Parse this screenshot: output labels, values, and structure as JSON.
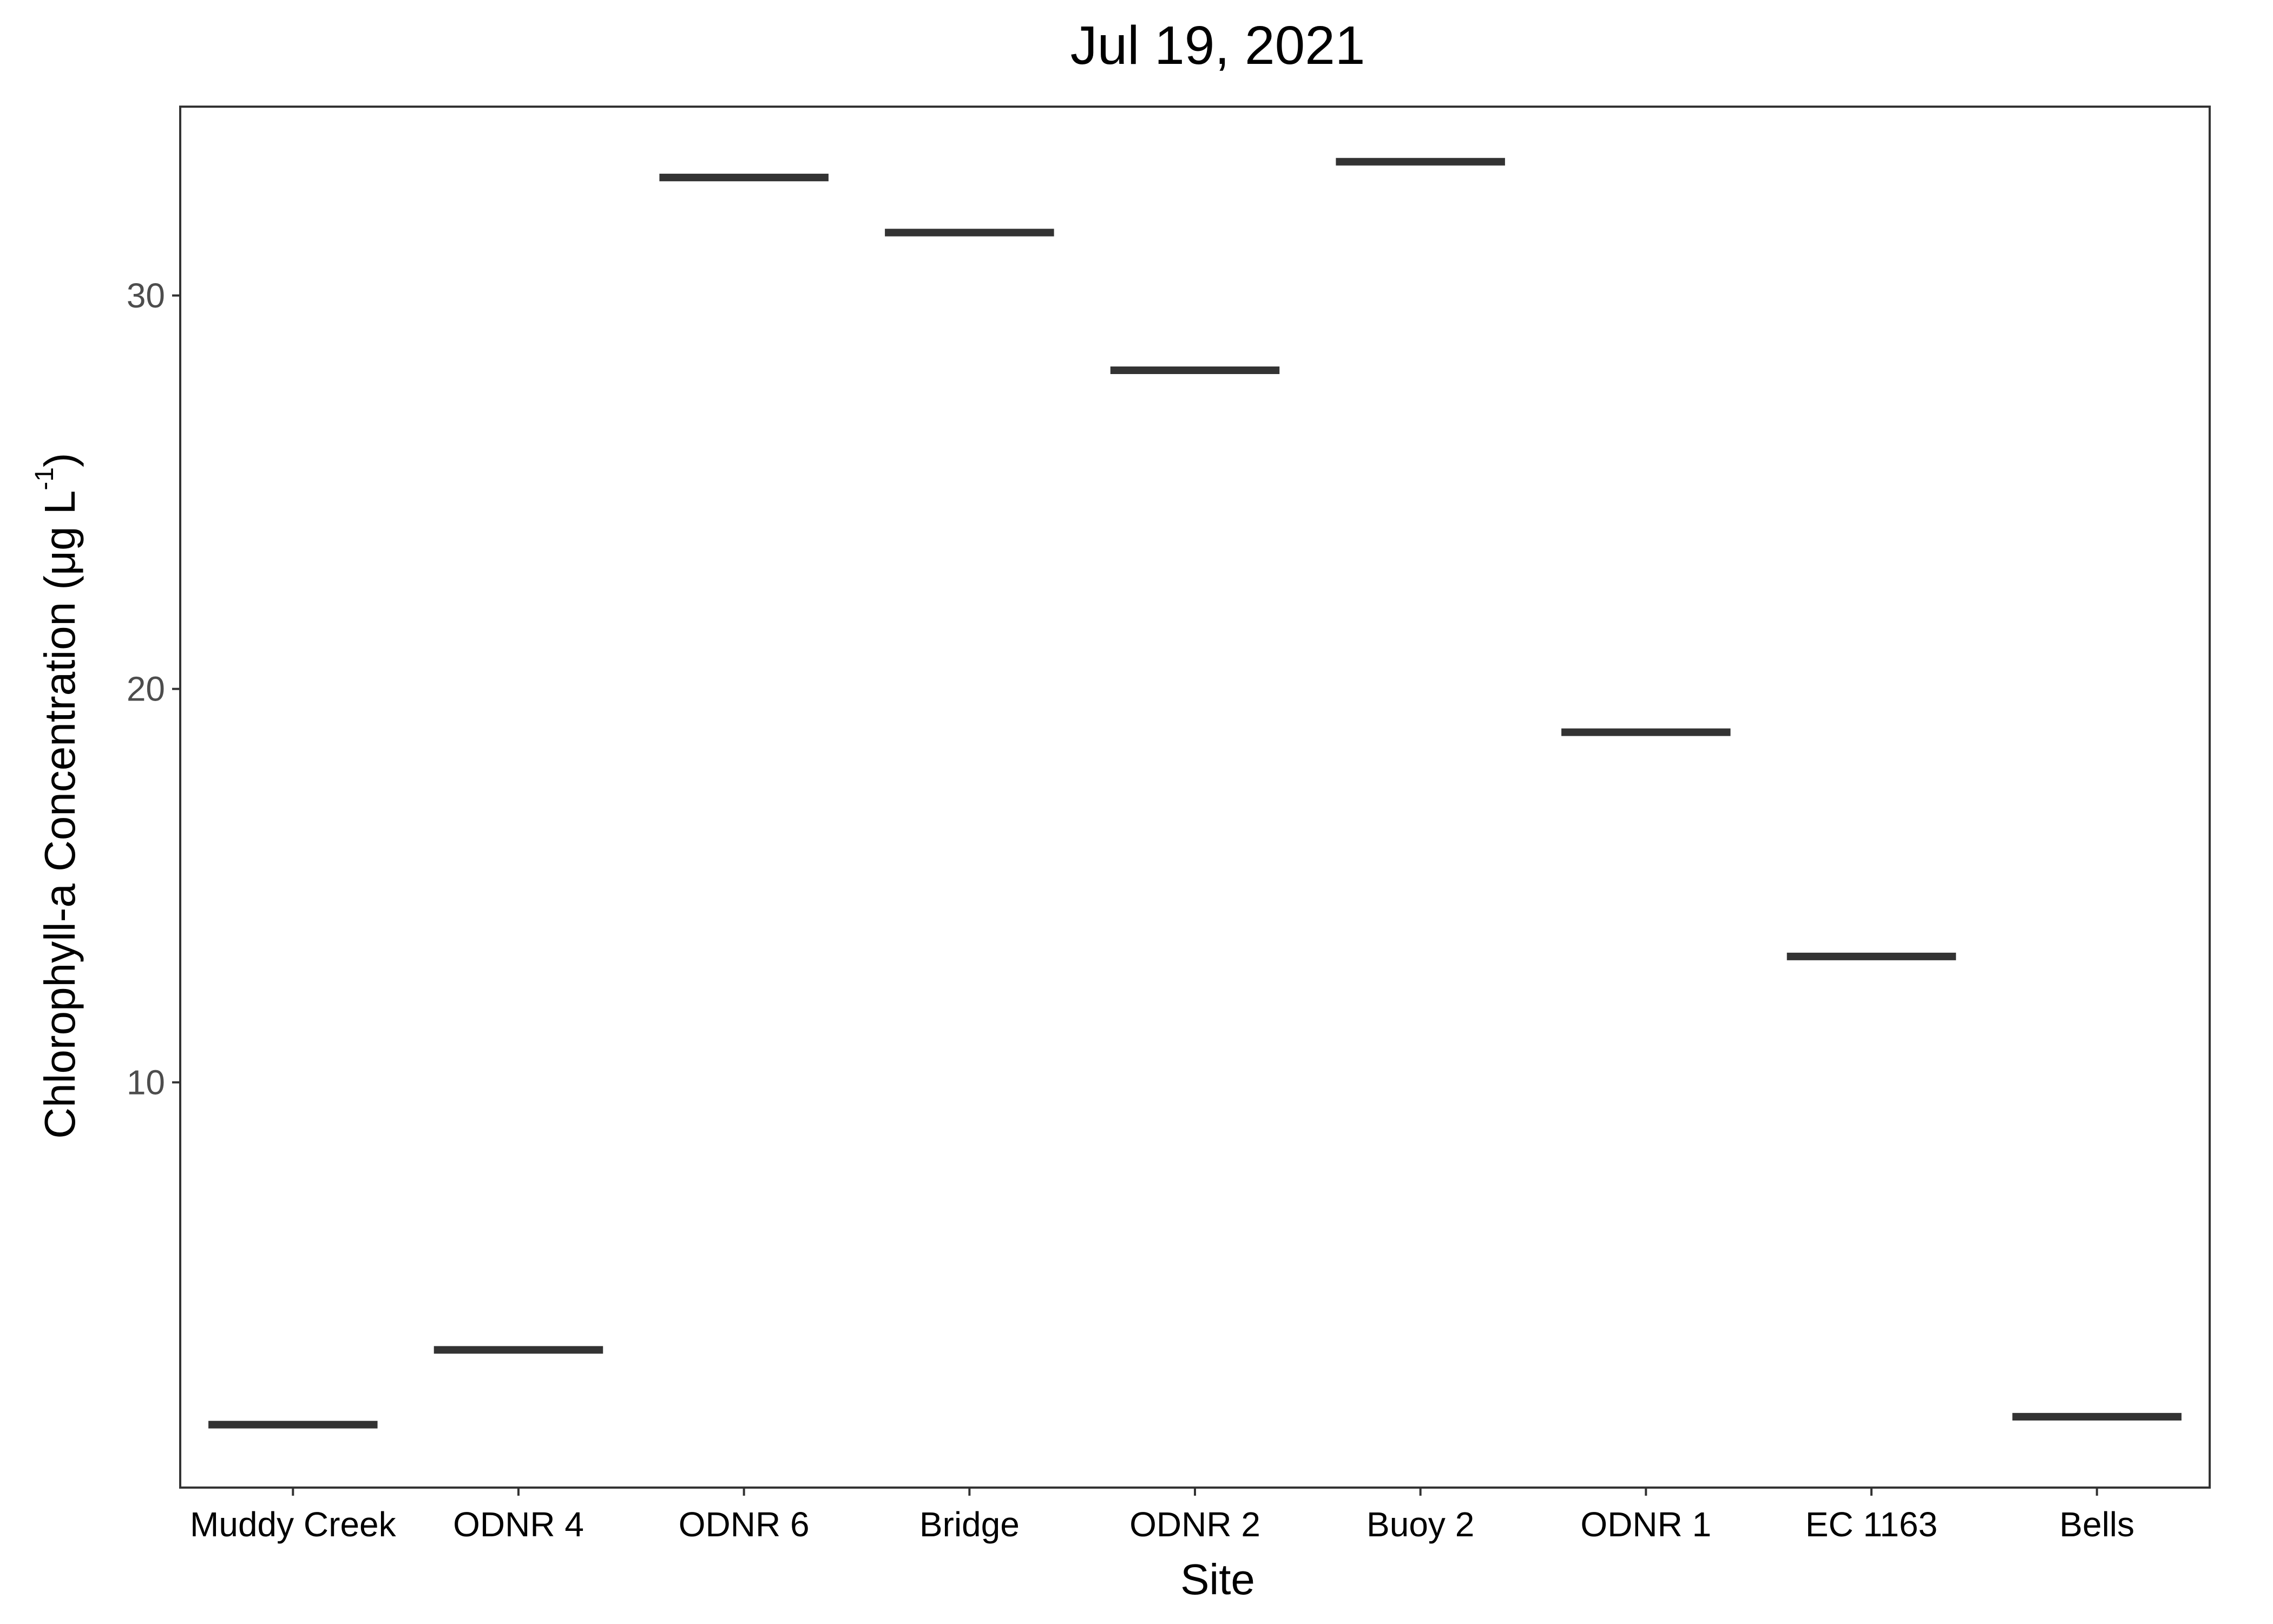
{
  "chart_data": {
    "type": "crossbar",
    "title": "Jul 19, 2021",
    "xlabel": "Site",
    "ylabel": {
      "main": "Chlorophyll-a Concentration (μg L",
      "superscript": "-1",
      "close": ")"
    },
    "categories": [
      "Muddy Creek",
      "ODNR 4",
      "ODNR 6",
      "Bridge",
      "ODNR 2",
      "Buoy 2",
      "ODNR 1",
      "EC 1163",
      "Bells"
    ],
    "values": [
      1.3,
      3.2,
      33.0,
      31.6,
      28.1,
      33.4,
      18.9,
      13.2,
      1.5
    ],
    "ylim": [
      -0.3,
      34.8
    ],
    "yticks": [
      10,
      20,
      30
    ],
    "grid": false,
    "colors": {
      "mark": "#333333",
      "axis_text": "#4d4d4d",
      "border": "#333333"
    }
  }
}
